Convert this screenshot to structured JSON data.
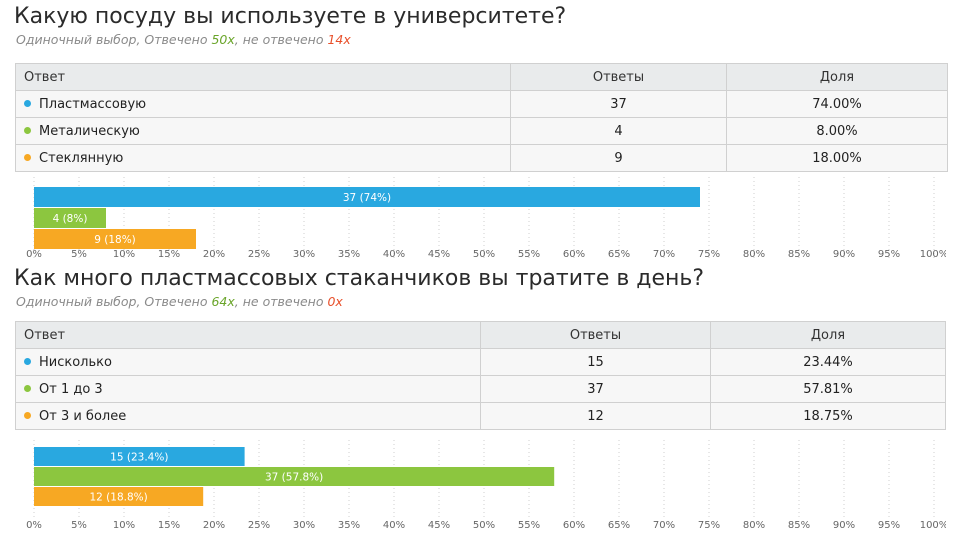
{
  "questions": [
    {
      "title": "Какую посуду вы используете в университете?",
      "subtitle": {
        "prefix": "Одиночный выбор, Отвечено ",
        "answered": "50x",
        "middle": ", не отвечено ",
        "unanswered": "14x"
      },
      "table": {
        "headers": [
          "Ответ",
          "Ответы",
          "Доля"
        ],
        "rows": [
          {
            "label": "Пластмассовую",
            "count": "37",
            "share": "74.00%",
            "color": "#29a8e0"
          },
          {
            "label": "Металическую",
            "count": "4",
            "share": "8.00%",
            "color": "#8cc63f"
          },
          {
            "label": "Стеклянную",
            "count": "9",
            "share": "18.00%",
            "color": "#f7a823"
          }
        ]
      }
    },
    {
      "title": "Как много пластмассовых стаканчиков вы тратите в день?",
      "subtitle": {
        "prefix": "Одиночный выбор, Отвечено ",
        "answered": "64x",
        "middle": ", не отвечено ",
        "unanswered": "0x"
      },
      "table": {
        "headers": [
          "Ответ",
          "Ответы",
          "Доля"
        ],
        "rows": [
          {
            "label": "Нисколько",
            "count": "15",
            "share": "23.44%",
            "color": "#29a8e0"
          },
          {
            "label": "От 1 до 3",
            "count": "37",
            "share": "57.81%",
            "color": "#8cc63f"
          },
          {
            "label": "От 3 и более",
            "count": "12",
            "share": "18.75%",
            "color": "#f7a823"
          }
        ]
      }
    }
  ],
  "chart_data": [
    {
      "type": "bar",
      "orientation": "horizontal",
      "categories": [
        "Пластмассовую",
        "Металическую",
        "Стеклянную"
      ],
      "values": [
        74,
        8,
        18
      ],
      "data_labels": [
        "37 (74%)",
        "4 (8%)",
        "9 (18%)"
      ],
      "colors": [
        "#29a8e0",
        "#8cc63f",
        "#f7a823"
      ],
      "xlim": [
        0,
        100
      ],
      "x_ticks": [
        "0%",
        "5%",
        "10%",
        "15%",
        "20%",
        "25%",
        "30%",
        "35%",
        "40%",
        "45%",
        "50%",
        "55%",
        "60%",
        "65%",
        "70%",
        "75%",
        "80%",
        "85%",
        "90%",
        "95%",
        "100%"
      ],
      "grid": "vertical dotted"
    },
    {
      "type": "bar",
      "orientation": "horizontal",
      "categories": [
        "Нисколько",
        "От 1 до 3",
        "От 3 и более"
      ],
      "values": [
        23.4,
        57.8,
        18.8
      ],
      "data_labels": [
        "15 (23.4%)",
        "37 (57.8%)",
        "12 (18.8%)"
      ],
      "colors": [
        "#29a8e0",
        "#8cc63f",
        "#f7a823"
      ],
      "xlim": [
        0,
        100
      ],
      "x_ticks": [
        "0%",
        "5%",
        "10%",
        "15%",
        "20%",
        "25%",
        "30%",
        "35%",
        "40%",
        "45%",
        "50%",
        "55%",
        "60%",
        "65%",
        "70%",
        "75%",
        "80%",
        "85%",
        "90%",
        "95%",
        "100%"
      ],
      "grid": "vertical dotted"
    }
  ]
}
